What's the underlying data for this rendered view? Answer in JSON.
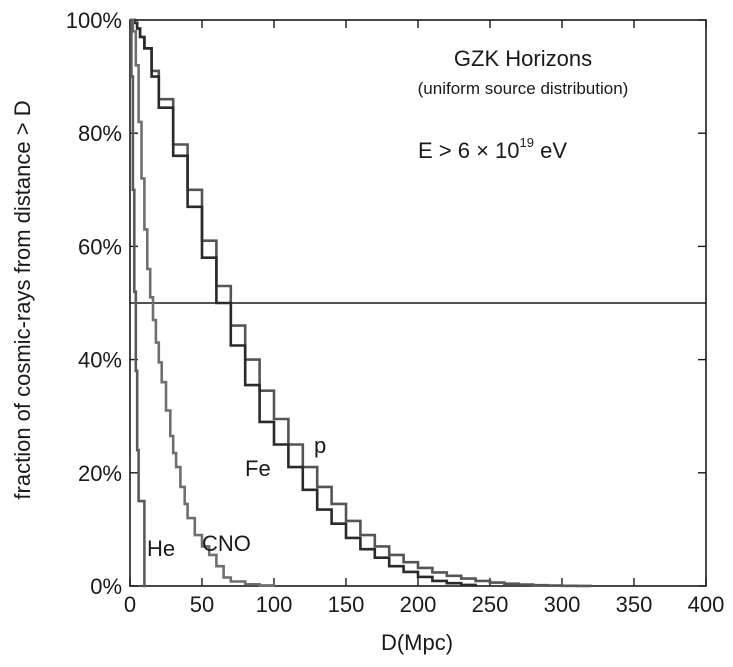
{
  "chart_data": {
    "type": "line",
    "annotation": {
      "title": "GZK Horizons",
      "subtitle": "(uniform source distribution)",
      "energy_prefix": "E > 6 × 10",
      "energy_exponent": "19",
      "energy_unit": " eV"
    },
    "xlabel": "D(Mpc)",
    "ylabel": "fraction of cosmic-rays from distance > D",
    "xlim": [
      0,
      400
    ],
    "ylim": [
      0,
      100
    ],
    "x_ticks": [
      0,
      50,
      100,
      150,
      200,
      250,
      300,
      350,
      400
    ],
    "x_tick_labels": [
      "0",
      "50",
      "100",
      "150",
      "200",
      "250",
      "300",
      "350",
      "400"
    ],
    "y_ticks": [
      0,
      20,
      40,
      60,
      80,
      100
    ],
    "y_tick_labels": [
      "0%",
      "20%",
      "40%",
      "60%",
      "80%",
      "100%"
    ],
    "reference_line": {
      "y": 50
    },
    "grid": false,
    "legend": "none (series labelled inline)",
    "colors": {
      "p": "#555555",
      "Fe": "#2a2a2a",
      "CNO": "#6f6f6f",
      "He": "#5a5a5a"
    },
    "series": [
      {
        "name": "p",
        "color": "#555555",
        "x": [
          0,
          3,
          5,
          7,
          10,
          15,
          20,
          30,
          40,
          50,
          60,
          70,
          80,
          90,
          100,
          110,
          120,
          130,
          140,
          150,
          160,
          170,
          180,
          190,
          200,
          210,
          220,
          230,
          240,
          250,
          260,
          270,
          280,
          290,
          300,
          310,
          320
        ],
        "y": [
          100,
          99.5,
          98.5,
          97,
          95,
          91,
          86,
          78,
          70,
          61,
          53,
          46,
          40,
          34.5,
          29.5,
          25,
          21,
          17.5,
          14.5,
          11.5,
          9,
          7,
          5.5,
          4.2,
          3.2,
          2.4,
          1.8,
          1.3,
          0.9,
          0.6,
          0.4,
          0.25,
          0.15,
          0.08,
          0.04,
          0.02,
          0
        ]
      },
      {
        "name": "Fe",
        "color": "#2a2a2a",
        "x": [
          0,
          3,
          5,
          7,
          10,
          15,
          20,
          30,
          40,
          50,
          60,
          70,
          80,
          90,
          100,
          110,
          120,
          130,
          140,
          150,
          160,
          170,
          180,
          190,
          200,
          210,
          220,
          230,
          240
        ],
        "y": [
          100,
          99.5,
          98.5,
          97,
          95,
          90,
          84.5,
          76,
          67,
          58,
          50,
          42.5,
          35.5,
          29,
          25,
          21,
          17,
          13.5,
          11,
          8.5,
          6.5,
          5,
          3.5,
          2.5,
          1.6,
          0.9,
          0.5,
          0.2,
          0
        ]
      },
      {
        "name": "CNO",
        "color": "#6f6f6f",
        "x": [
          0,
          2,
          4,
          6,
          8,
          10,
          12,
          14,
          16,
          18,
          20,
          22,
          25,
          28,
          30,
          32,
          35,
          38,
          40,
          45,
          50,
          55,
          60,
          65,
          70,
          80,
          90,
          100
        ],
        "y": [
          100,
          98,
          92,
          82,
          72,
          63,
          56,
          51,
          47,
          43,
          39.5,
          36,
          31,
          26.5,
          23.5,
          21,
          17.5,
          14.5,
          12,
          9,
          7,
          5.5,
          3.5,
          1.5,
          0.8,
          0.3,
          0.1,
          0
        ]
      },
      {
        "name": "He",
        "color": "#5a5a5a",
        "x": [
          0,
          1,
          2,
          3,
          4,
          5,
          6,
          7,
          8,
          9,
          10,
          11
        ],
        "y": [
          100,
          90,
          70,
          52,
          38,
          24,
          15,
          15,
          15,
          15,
          0,
          0
        ]
      }
    ]
  }
}
